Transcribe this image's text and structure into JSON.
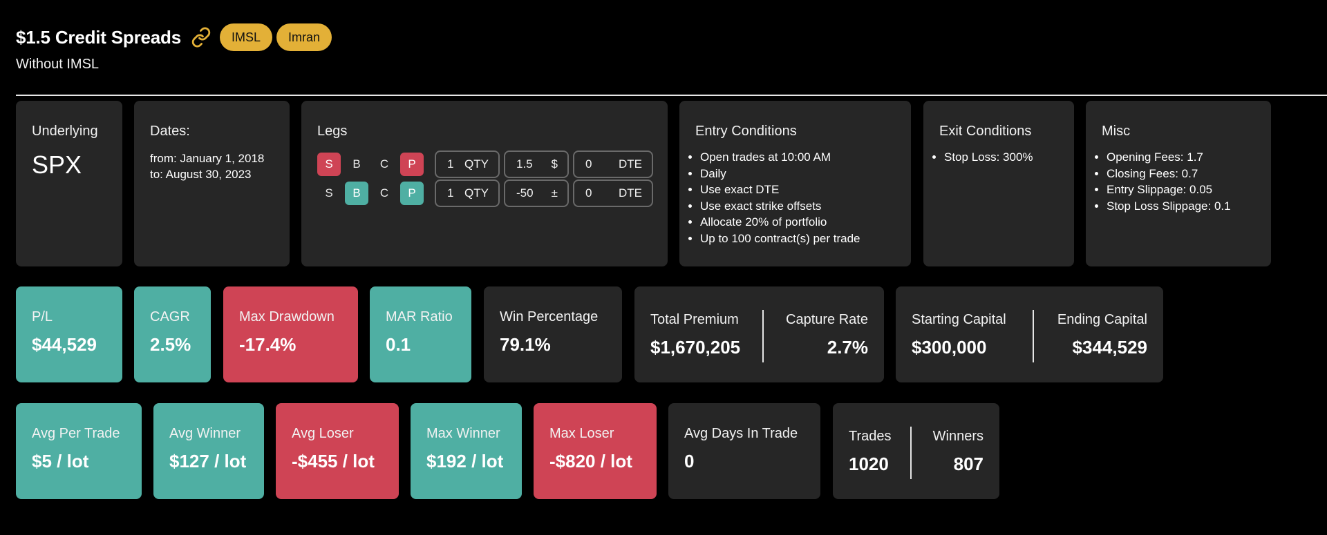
{
  "header": {
    "title": "$1.5 Credit Spreads",
    "link_icon": "link-icon",
    "tags": [
      "IMSL",
      "Imran"
    ],
    "subtitle": "Without IMSL",
    "tag_color": "#e3b037"
  },
  "underlying": {
    "label": "Underlying",
    "value": "SPX"
  },
  "dates": {
    "label": "Dates:",
    "from": "from: January 1, 2018",
    "to": "to: August 30, 2023"
  },
  "legs": {
    "label": "Legs",
    "rows": [
      {
        "s": "S",
        "b": "B",
        "c": "C",
        "p": "P",
        "qty": "1",
        "qty_unit": "QTY",
        "amount": "1.5",
        "amount_unit": "$",
        "dte": "0",
        "dte_unit": "DTE"
      },
      {
        "s": "S",
        "b": "B",
        "c": "C",
        "p": "P",
        "qty": "1",
        "qty_unit": "QTY",
        "amount": "-50",
        "amount_unit": "±",
        "dte": "0",
        "dte_unit": "DTE"
      }
    ]
  },
  "entry_conditions": {
    "label": "Entry Conditions",
    "items": [
      "Open trades at 10:00 AM",
      "Daily",
      "Use exact DTE",
      "Use exact strike offsets",
      "Allocate 20% of portfolio",
      "Up to 100 contract(s) per trade"
    ]
  },
  "exit_conditions": {
    "label": "Exit Conditions",
    "items": [
      "Stop Loss: 300%"
    ]
  },
  "misc": {
    "label": "Misc",
    "items": [
      "Opening Fees: 1.7",
      "Closing Fees: 0.7",
      "Entry Slippage: 0.05",
      "Stop Loss Slippage: 0.1"
    ]
  },
  "stats_row1": {
    "pl": {
      "label": "P/L",
      "value": "$44,529"
    },
    "cagr": {
      "label": "CAGR",
      "value": "2.5%"
    },
    "max_drawdown": {
      "label": "Max Drawdown",
      "value": "-17.4%"
    },
    "mar_ratio": {
      "label": "MAR Ratio",
      "value": "0.1"
    },
    "win_percentage": {
      "label": "Win Percentage",
      "value": "79.1%"
    },
    "total_premium": {
      "label": "Total Premium",
      "value": "$1,670,205"
    },
    "capture_rate": {
      "label": "Capture Rate",
      "value": "2.7%"
    },
    "starting_capital": {
      "label": "Starting Capital",
      "value": "$300,000"
    },
    "ending_capital": {
      "label": "Ending Capital",
      "value": "$344,529"
    }
  },
  "stats_row2": {
    "avg_per_trade": {
      "label": "Avg Per Trade",
      "value": "$5 / lot"
    },
    "avg_winner": {
      "label": "Avg Winner",
      "value": "$127 / lot"
    },
    "avg_loser": {
      "label": "Avg Loser",
      "value": "-$455 / lot"
    },
    "max_winner": {
      "label": "Max Winner",
      "value": "$192 / lot"
    },
    "max_loser": {
      "label": "Max Loser",
      "value": "-$820 / lot"
    },
    "avg_days": {
      "label": "Avg Days In Trade",
      "value": "0"
    },
    "trades": {
      "label": "Trades",
      "value": "1020"
    },
    "winners": {
      "label": "Winners",
      "value": "807"
    }
  },
  "colors": {
    "positive": "#4fafa3",
    "negative": "#cf4455",
    "neutral_card": "#262626"
  }
}
